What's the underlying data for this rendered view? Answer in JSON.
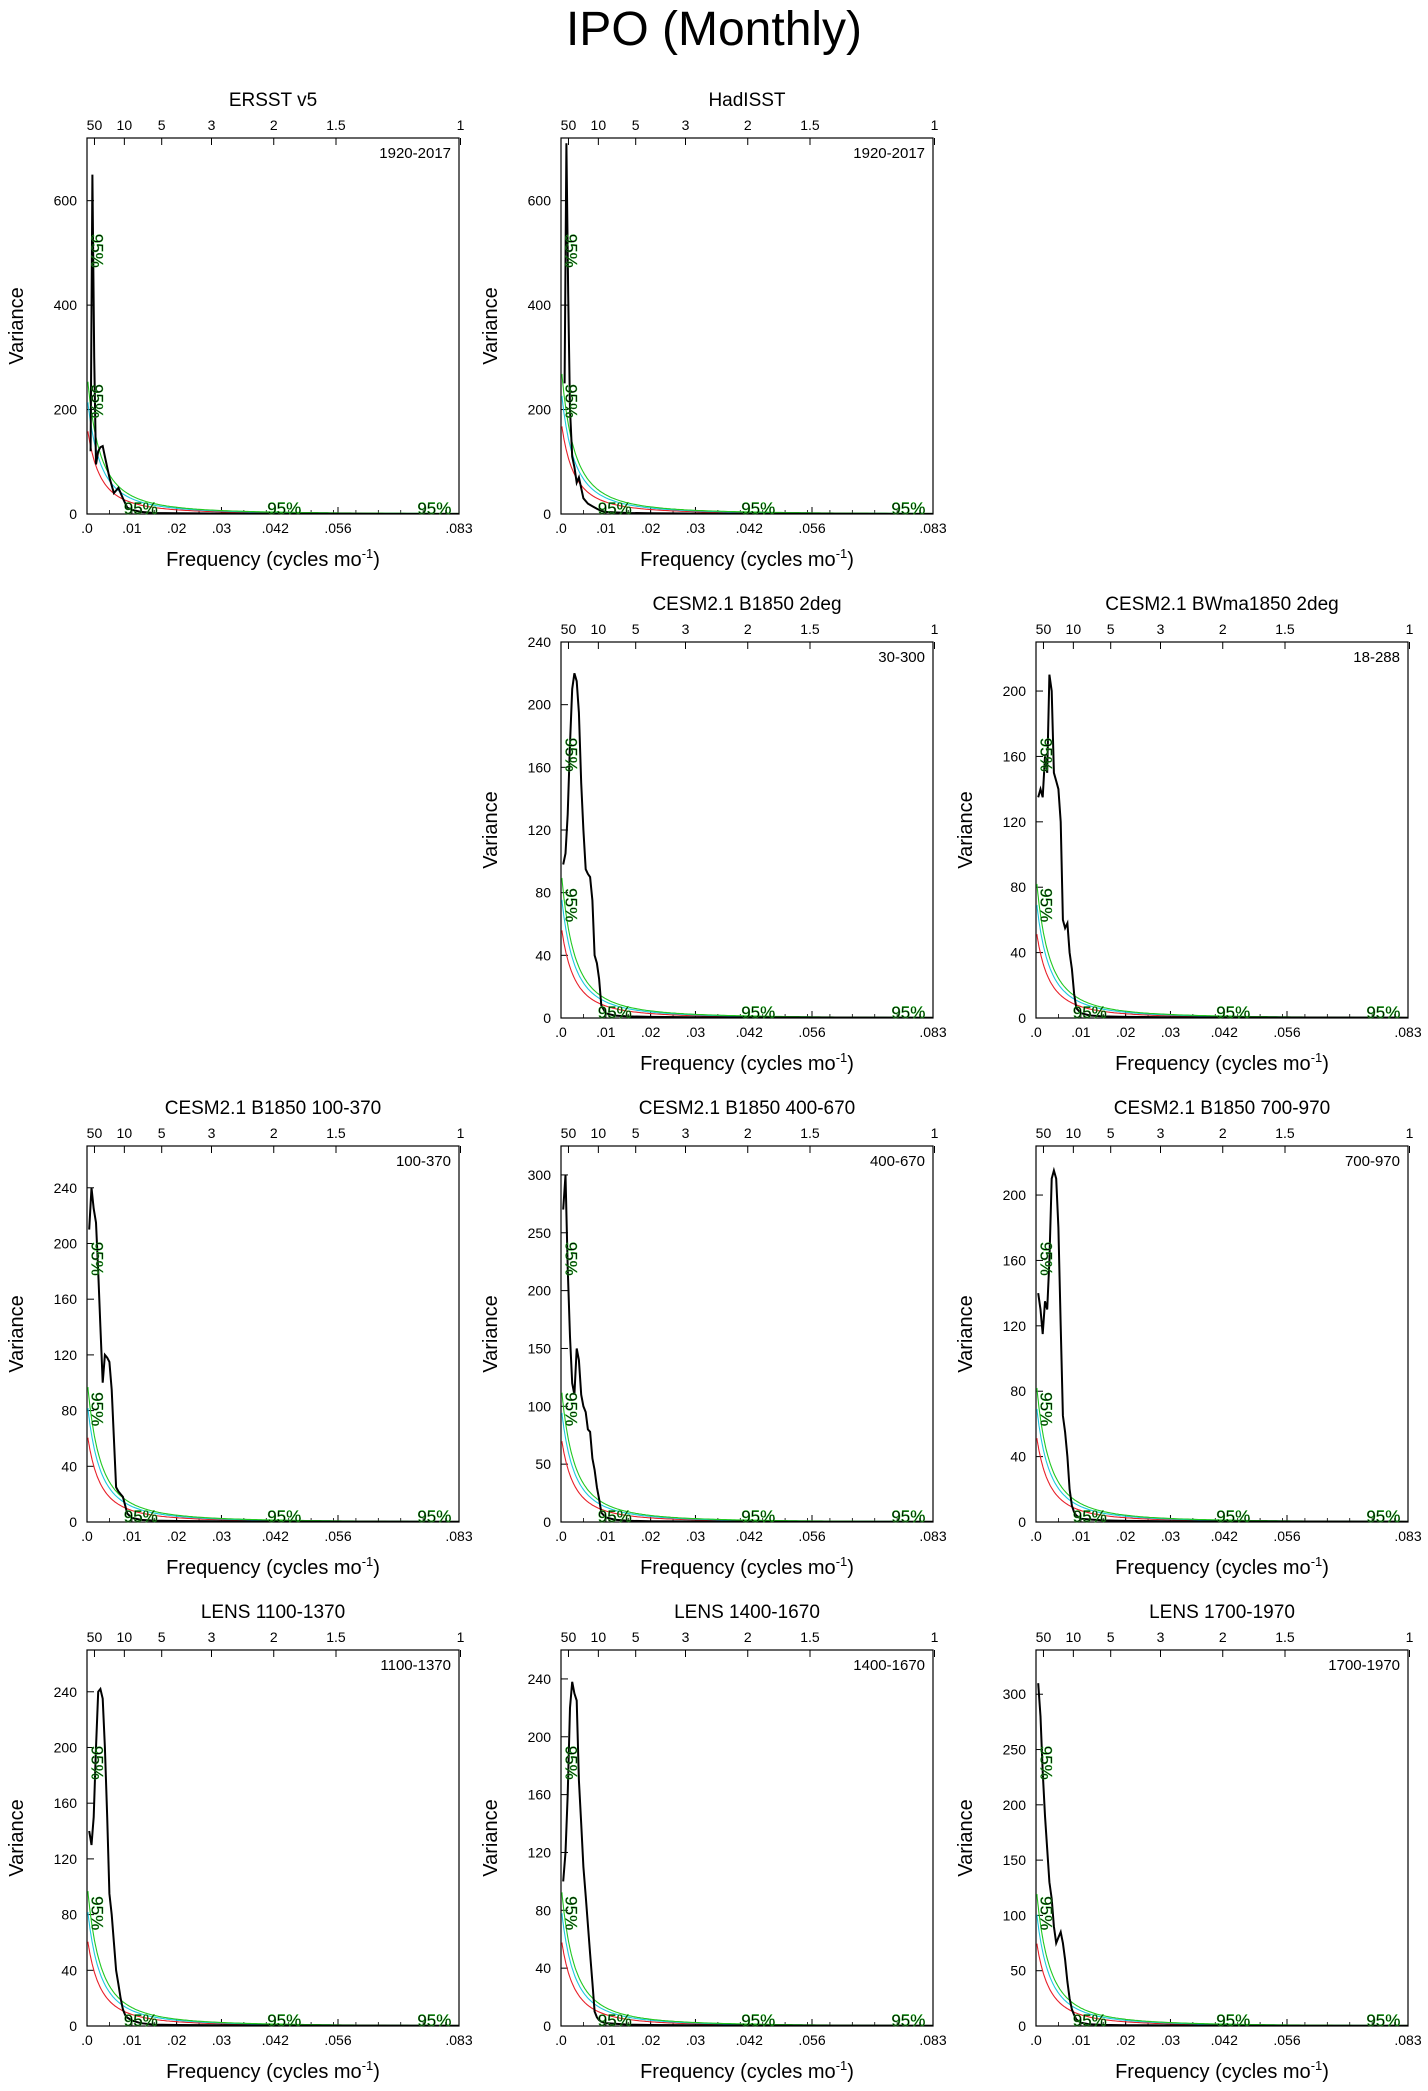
{
  "figure": {
    "title": "IPO (Monthly)",
    "xlabel_main": "Frequency (cycles mo",
    "xlabel_sup": "-1",
    "xlabel_close": ")",
    "ylabel": "Variance",
    "bottom_ticks": [
      {
        "v": 0.0,
        "label": ".0"
      },
      {
        "v": 0.01,
        "label": ".01"
      },
      {
        "v": 0.02,
        "label": ".02"
      },
      {
        "v": 0.03,
        "label": ".03"
      },
      {
        "v": 0.042,
        "label": ".042"
      },
      {
        "v": 0.056,
        "label": ".056"
      },
      {
        "v": 0.083,
        "label": ".083"
      }
    ],
    "top_ticks": [
      {
        "p": 50,
        "label": "50"
      },
      {
        "p": 10,
        "label": "10"
      },
      {
        "p": 5,
        "label": "5"
      },
      {
        "p": 3,
        "label": "3"
      },
      {
        "p": 2,
        "label": "2"
      },
      {
        "p": 1.5,
        "label": "1.5"
      },
      {
        "p": 1,
        "label": "1"
      }
    ],
    "confidence_label": "95%",
    "colors": {
      "spectrum": "#000000",
      "red_noise": "#e8202a",
      "ci_a": "#1ec8e0",
      "ci_b": "#22c822",
      "label_a": "#1a1aa0",
      "label_b": "#22c822"
    }
  },
  "chart_data": [
    {
      "type": "line",
      "title": "ERSST v5",
      "period": "1920-2017",
      "ylim": [
        0,
        720
      ],
      "yticks": [
        0,
        200,
        400,
        600
      ],
      "label_color": "label_a",
      "x": [
        0.0008,
        0.0012,
        0.0016,
        0.002,
        0.0025,
        0.003,
        0.0035,
        0.004,
        0.005,
        0.006,
        0.007,
        0.008,
        0.009,
        0.01,
        0.012,
        0.015,
        0.02,
        0.03,
        0.045,
        0.06,
        0.083
      ],
      "spectrum": [
        120,
        650,
        300,
        95,
        120,
        128,
        130,
        110,
        70,
        40,
        50,
        30,
        12,
        8,
        4,
        2,
        1.5,
        1,
        0.5,
        0.3,
        0.2
      ],
      "red_noise_scale": 170
    },
    {
      "type": "line",
      "title": "HadISST",
      "period": "1920-2017",
      "ylim": [
        0,
        720
      ],
      "yticks": [
        0,
        200,
        400,
        600
      ],
      "label_color": "label_a",
      "x": [
        0.0008,
        0.0012,
        0.0016,
        0.002,
        0.0025,
        0.003,
        0.0035,
        0.004,
        0.005,
        0.006,
        0.007,
        0.008,
        0.009,
        0.01,
        0.012,
        0.015,
        0.02,
        0.03,
        0.045,
        0.06,
        0.083
      ],
      "spectrum": [
        250,
        710,
        420,
        200,
        110,
        90,
        60,
        70,
        30,
        20,
        15,
        10,
        6,
        4,
        3,
        2,
        1.5,
        1,
        0.5,
        0.3,
        0.2
      ],
      "red_noise_scale": 180
    },
    {
      "type": "line",
      "title": "CESM2.1 B1850 2deg",
      "period": "30-300",
      "ylim": [
        0,
        240
      ],
      "yticks": [
        0,
        40,
        80,
        120,
        160,
        200,
        240
      ],
      "label_color": "label_b",
      "x": [
        0.0005,
        0.001,
        0.0015,
        0.002,
        0.0025,
        0.003,
        0.0035,
        0.004,
        0.0045,
        0.005,
        0.0055,
        0.006,
        0.0065,
        0.007,
        0.0075,
        0.008,
        0.0085,
        0.009,
        0.01,
        0.012,
        0.015,
        0.02,
        0.03,
        0.05,
        0.083
      ],
      "spectrum": [
        98,
        105,
        130,
        175,
        210,
        220,
        215,
        195,
        150,
        120,
        95,
        92,
        90,
        75,
        40,
        35,
        25,
        8,
        3,
        1.5,
        1,
        0.7,
        0.5,
        0.3,
        0.2
      ],
      "red_noise_scale": 60
    },
    {
      "type": "line",
      "title": "CESM2.1 BWma1850 2deg",
      "period": "18-288",
      "ylim": [
        0,
        230
      ],
      "yticks": [
        0,
        40,
        80,
        120,
        160,
        200
      ],
      "label_color": "label_b",
      "x": [
        0.0005,
        0.001,
        0.0015,
        0.002,
        0.0025,
        0.003,
        0.0035,
        0.004,
        0.0045,
        0.005,
        0.0055,
        0.006,
        0.0065,
        0.007,
        0.0075,
        0.008,
        0.0085,
        0.009,
        0.01,
        0.012,
        0.015,
        0.02,
        0.03,
        0.05,
        0.083
      ],
      "spectrum": [
        135,
        140,
        135,
        160,
        150,
        210,
        200,
        150,
        145,
        140,
        120,
        60,
        55,
        58,
        40,
        30,
        15,
        6,
        3,
        1.5,
        1,
        0.7,
        0.5,
        0.3,
        0.2
      ],
      "red_noise_scale": 55
    },
    {
      "type": "line",
      "title": "CESM2.1 B1850 100-370",
      "period": "100-370",
      "ylim": [
        0,
        270
      ],
      "yticks": [
        0,
        40,
        80,
        120,
        160,
        200,
        240
      ],
      "label_color": "label_b",
      "x": [
        0.0005,
        0.001,
        0.0015,
        0.002,
        0.0025,
        0.003,
        0.0035,
        0.004,
        0.0045,
        0.005,
        0.0055,
        0.006,
        0.0065,
        0.007,
        0.0075,
        0.008,
        0.0085,
        0.009,
        0.01,
        0.012,
        0.015,
        0.02,
        0.03,
        0.05,
        0.083
      ],
      "spectrum": [
        210,
        240,
        225,
        215,
        180,
        140,
        100,
        120,
        118,
        115,
        95,
        60,
        25,
        22,
        20,
        18,
        12,
        6,
        3,
        1.5,
        1,
        0.7,
        0.5,
        0.3,
        0.2
      ],
      "red_noise_scale": 65
    },
    {
      "type": "line",
      "title": "CESM2.1 B1850 400-670",
      "period": "400-670",
      "ylim": [
        0,
        325
      ],
      "yticks": [
        0,
        50,
        100,
        150,
        200,
        250,
        300
      ],
      "label_color": "label_b",
      "x": [
        0.0005,
        0.001,
        0.0015,
        0.002,
        0.0025,
        0.003,
        0.0035,
        0.004,
        0.0045,
        0.005,
        0.0055,
        0.006,
        0.0065,
        0.007,
        0.0075,
        0.008,
        0.0085,
        0.009,
        0.01,
        0.012,
        0.015,
        0.02,
        0.03,
        0.05,
        0.083
      ],
      "spectrum": [
        270,
        300,
        220,
        160,
        120,
        110,
        150,
        140,
        110,
        100,
        95,
        80,
        78,
        55,
        45,
        30,
        20,
        8,
        4,
        2,
        1,
        0.7,
        0.5,
        0.3,
        0.2
      ],
      "red_noise_scale": 75
    },
    {
      "type": "line",
      "title": "CESM2.1 B1850 700-970",
      "period": "700-970",
      "ylim": [
        0,
        230
      ],
      "yticks": [
        0,
        40,
        80,
        120,
        160,
        200
      ],
      "label_color": "label_b",
      "x": [
        0.0005,
        0.001,
        0.0015,
        0.002,
        0.0025,
        0.003,
        0.0035,
        0.004,
        0.0045,
        0.005,
        0.0055,
        0.006,
        0.0065,
        0.007,
        0.0075,
        0.008,
        0.0085,
        0.009,
        0.01,
        0.012,
        0.015,
        0.02,
        0.03,
        0.05,
        0.083
      ],
      "spectrum": [
        140,
        130,
        115,
        135,
        130,
        160,
        210,
        215,
        210,
        180,
        120,
        65,
        55,
        40,
        20,
        10,
        6,
        4,
        2,
        1.5,
        1,
        0.7,
        0.5,
        0.3,
        0.2
      ],
      "red_noise_scale": 55
    },
    {
      "type": "line",
      "title": "LENS 1100-1370",
      "period": "1100-1370",
      "ylim": [
        0,
        270
      ],
      "yticks": [
        0,
        40,
        80,
        120,
        160,
        200,
        240
      ],
      "label_color": "label_b",
      "x": [
        0.0005,
        0.001,
        0.0015,
        0.002,
        0.0025,
        0.003,
        0.0035,
        0.004,
        0.0045,
        0.005,
        0.0055,
        0.006,
        0.0065,
        0.007,
        0.0075,
        0.008,
        0.0085,
        0.009,
        0.01,
        0.012,
        0.015,
        0.02,
        0.03,
        0.05,
        0.083
      ],
      "spectrum": [
        140,
        130,
        150,
        200,
        240,
        242,
        235,
        200,
        150,
        95,
        80,
        60,
        40,
        30,
        20,
        12,
        8,
        6,
        4,
        2,
        1,
        0.7,
        0.5,
        0.3,
        0.2
      ],
      "red_noise_scale": 65
    },
    {
      "type": "line",
      "title": "LENS 1400-1670",
      "period": "1400-1670",
      "ylim": [
        0,
        260
      ],
      "yticks": [
        0,
        40,
        80,
        120,
        160,
        200,
        240
      ],
      "label_color": "label_b",
      "x": [
        0.0005,
        0.001,
        0.0015,
        0.002,
        0.0025,
        0.003,
        0.0035,
        0.004,
        0.0045,
        0.005,
        0.0055,
        0.006,
        0.0065,
        0.007,
        0.0075,
        0.008,
        0.0085,
        0.009,
        0.01,
        0.012,
        0.015,
        0.02,
        0.03,
        0.05,
        0.083
      ],
      "spectrum": [
        100,
        120,
        160,
        220,
        238,
        230,
        225,
        170,
        140,
        110,
        90,
        70,
        50,
        30,
        10,
        6,
        4,
        3,
        2,
        1.5,
        1,
        0.7,
        0.5,
        0.3,
        0.2
      ],
      "red_noise_scale": 62
    },
    {
      "type": "line",
      "title": "LENS 1700-1970",
      "period": "1700-1970",
      "ylim": [
        0,
        340
      ],
      "yticks": [
        0,
        50,
        100,
        150,
        200,
        250,
        300
      ],
      "label_color": "label_b",
      "x": [
        0.0005,
        0.001,
        0.0015,
        0.002,
        0.0025,
        0.003,
        0.0035,
        0.004,
        0.0045,
        0.005,
        0.0055,
        0.006,
        0.0065,
        0.007,
        0.0075,
        0.008,
        0.0085,
        0.009,
        0.01,
        0.012,
        0.015,
        0.02,
        0.03,
        0.05,
        0.083
      ],
      "spectrum": [
        310,
        280,
        230,
        190,
        160,
        130,
        115,
        90,
        75,
        80,
        85,
        75,
        60,
        40,
        25,
        15,
        10,
        6,
        3,
        1.5,
        1,
        0.7,
        0.5,
        0.3,
        0.2
      ],
      "red_noise_scale": 80
    }
  ]
}
